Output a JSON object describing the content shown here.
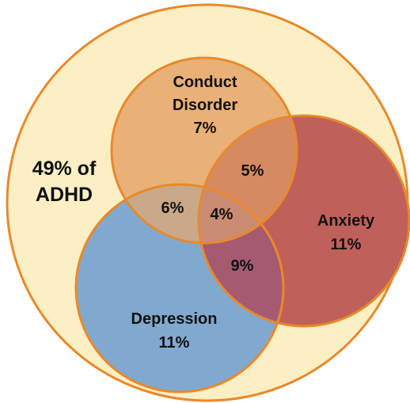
{
  "diagram": {
    "type": "venn",
    "outer": {
      "line1": "49% of",
      "line2": "ADHD",
      "fill": "#fcefc4",
      "stroke": "#e8892b"
    },
    "sets": {
      "conduct": {
        "line1": "Conduct",
        "line2": "Disorder",
        "value": "7%",
        "fill": "#e9b078"
      },
      "anxiety": {
        "line1": "Anxiety",
        "value": "11%",
        "fill": "#c0605a"
      },
      "depression": {
        "line1": "Depression",
        "value": "11%",
        "fill": "#81a9cf"
      }
    },
    "overlaps": {
      "conduct_anxiety": "5%",
      "conduct_depression": "6%",
      "all_three": "4%",
      "anxiety_depression": "9%"
    },
    "stroke_color": "#e8892b"
  }
}
